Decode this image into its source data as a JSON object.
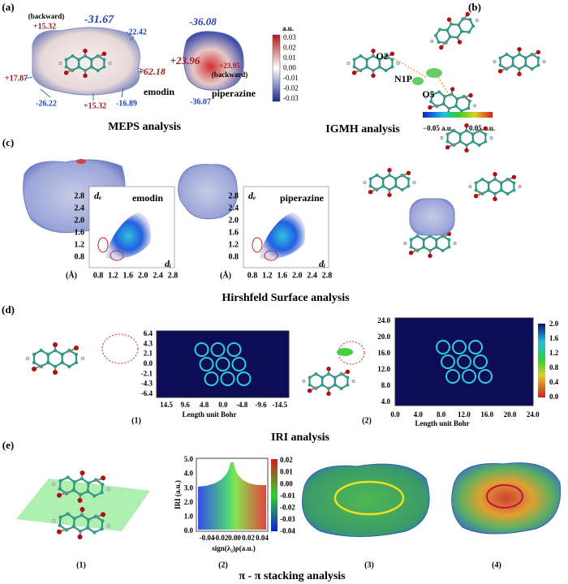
{
  "a": {
    "label": "(a)",
    "caption": "MEPS analysis",
    "emodin": {
      "name": "emodin",
      "values": [
        "(backward)",
        "+15.32",
        "-31.67",
        "-22.42",
        "+17.87",
        "+62.18",
        "-26.22",
        "+15.32",
        "-16.89"
      ]
    },
    "piperazine": {
      "name": "piperazine",
      "values": [
        "-36.08",
        "+23.96",
        "+23.95",
        "(backward)",
        "-36.07"
      ]
    },
    "colorbar": {
      "unit": "a.u.",
      "ticks": [
        "0.03",
        "0.02",
        "0.01",
        "0.00",
        "-0.01",
        "-0.02",
        "-0.03"
      ]
    }
  },
  "b": {
    "label": "(b)",
    "caption": "IGMH analysis",
    "atoms": [
      "O2",
      "N1P",
      "O5"
    ],
    "colorbar": [
      "−0.05 a.u.",
      "0.05 a.u."
    ]
  },
  "c": {
    "label": "(c)",
    "caption": "Hirshfeld Surface analysis",
    "plots": [
      {
        "name": "emodin",
        "y_label": "dₑ",
        "x_label": "dᵢ",
        "unit": "(Å)",
        "yticks": [
          "2.8",
          "2.4",
          "2.0",
          "1.6",
          "1.2",
          "0.8"
        ],
        "xticks": [
          "0.8",
          "1.2",
          "1.6",
          "2.0",
          "2.4",
          "2.8"
        ]
      },
      {
        "name": "piperazine",
        "y_label": "dₑ",
        "x_label": "dᵢ",
        "unit": "(Å)",
        "yticks": [
          "2.8",
          "2.4",
          "2.0",
          "1.6",
          "1.2",
          "0.8"
        ],
        "xticks": [
          "0.8",
          "1.2",
          "1.6",
          "2.0",
          "2.4",
          "2.8"
        ]
      }
    ]
  },
  "d": {
    "label": "(d)",
    "caption": "IRI analysis",
    "maps": [
      {
        "panel": "(1)",
        "x_label": "Length unit Bohr",
        "yticks": [
          "6.4",
          "4.3",
          "2.1",
          "0.0",
          "-2.1",
          "-4.3",
          "-6.4"
        ],
        "xticks": [
          "14.5",
          "9.6",
          "4.8",
          "0.0",
          "-4.8",
          "-9.6",
          "-14.5"
        ]
      },
      {
        "panel": "(2)",
        "x_label": "Length unit Bohr",
        "yticks": [
          "24.0",
          "20.0",
          "16.0",
          "12.0",
          "8.0",
          "4.0"
        ],
        "xticks": [
          "0.0",
          "4.0",
          "8.0",
          "12.0",
          "16.0",
          "20.0",
          "24.0"
        ]
      }
    ],
    "colorbar": [
      "2.0",
      "1.6",
      "1.2",
      "0.8",
      "0.4",
      "0.0"
    ]
  },
  "e": {
    "label": "(e)",
    "caption": "π - π stacking analysis",
    "subpanels": [
      "(1)",
      "(2)",
      "(3)",
      "(4)"
    ],
    "plot": {
      "y_label": "IRI (a.u.)",
      "x_label": "sign(λ₂)ρ(a.u.)",
      "yticks": [
        "5.0",
        "4.0",
        "3.0",
        "2.0",
        "1.0",
        "0.0"
      ],
      "xticks": [
        "-0.04",
        "-0.02",
        "0.00",
        "0.02",
        "0.04"
      ],
      "colorbar": [
        "0.02",
        "0.01",
        "0.00",
        "-0.01",
        "-0.02",
        "-0.03",
        "-0.04"
      ]
    }
  }
}
